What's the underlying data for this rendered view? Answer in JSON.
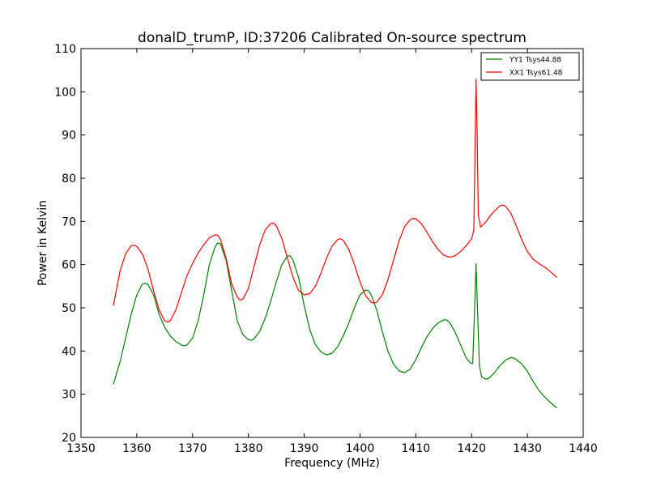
{
  "chart_data": {
    "type": "line",
    "title": "donalD_trumP, ID:37206 Calibrated On-source spectrum",
    "xlabel": "Frequency (MHz)",
    "ylabel": "Power in Kelvin",
    "xlim": [
      1350,
      1440
    ],
    "ylim": [
      20,
      110
    ],
    "xticks": [
      1350,
      1360,
      1370,
      1380,
      1390,
      1400,
      1410,
      1420,
      1430,
      1440
    ],
    "yticks": [
      20,
      30,
      40,
      50,
      60,
      70,
      80,
      90,
      100,
      110
    ],
    "grid": false,
    "legend_position": "top-right",
    "series": [
      {
        "name": "YY1 Tsys44.88",
        "color": "#008000",
        "points": [
          [
            1355.8,
            32.3
          ],
          [
            1357.0,
            37.5
          ],
          [
            1358.0,
            43.0
          ],
          [
            1359.0,
            48.5
          ],
          [
            1360.0,
            53.0
          ],
          [
            1361.0,
            55.5
          ],
          [
            1361.5,
            55.7
          ],
          [
            1362.0,
            55.4
          ],
          [
            1363.0,
            53.0
          ],
          [
            1364.0,
            48.5
          ],
          [
            1365.0,
            45.5
          ],
          [
            1366.0,
            43.5
          ],
          [
            1367.0,
            42.2
          ],
          [
            1368.0,
            41.4
          ],
          [
            1368.5,
            41.2
          ],
          [
            1369.0,
            41.4
          ],
          [
            1370.0,
            43.0
          ],
          [
            1371.0,
            47.0
          ],
          [
            1372.0,
            53.0
          ],
          [
            1373.0,
            60.0
          ],
          [
            1374.0,
            64.0
          ],
          [
            1374.5,
            65.0
          ],
          [
            1375.0,
            64.8
          ],
          [
            1376.0,
            61.0
          ],
          [
            1377.0,
            54.0
          ],
          [
            1378.0,
            47.0
          ],
          [
            1379.0,
            43.8
          ],
          [
            1380.0,
            42.6
          ],
          [
            1380.5,
            42.5
          ],
          [
            1381.0,
            42.8
          ],
          [
            1382.0,
            44.5
          ],
          [
            1383.0,
            47.5
          ],
          [
            1384.0,
            51.5
          ],
          [
            1385.0,
            56.0
          ],
          [
            1386.0,
            60.0
          ],
          [
            1387.0,
            62.0
          ],
          [
            1387.5,
            62.0
          ],
          [
            1388.0,
            61.0
          ],
          [
            1389.0,
            57.0
          ],
          [
            1390.0,
            50.5
          ],
          [
            1391.0,
            45.0
          ],
          [
            1392.0,
            41.5
          ],
          [
            1393.0,
            39.8
          ],
          [
            1394.0,
            39.1
          ],
          [
            1395.0,
            39.5
          ],
          [
            1396.0,
            41.0
          ],
          [
            1397.0,
            43.5
          ],
          [
            1398.0,
            46.5
          ],
          [
            1399.0,
            50.0
          ],
          [
            1400.0,
            53.0
          ],
          [
            1401.0,
            54.1
          ],
          [
            1401.5,
            54.0
          ],
          [
            1402.0,
            53.0
          ],
          [
            1403.0,
            49.5
          ],
          [
            1404.0,
            44.5
          ],
          [
            1405.0,
            40.0
          ],
          [
            1406.0,
            37.0
          ],
          [
            1407.0,
            35.4
          ],
          [
            1408.0,
            35.0
          ],
          [
            1409.0,
            35.8
          ],
          [
            1410.0,
            38.0
          ],
          [
            1411.0,
            40.8
          ],
          [
            1412.0,
            43.3
          ],
          [
            1413.0,
            45.2
          ],
          [
            1414.0,
            46.5
          ],
          [
            1415.0,
            47.2
          ],
          [
            1415.5,
            47.2
          ],
          [
            1416.0,
            46.7
          ],
          [
            1417.0,
            44.5
          ],
          [
            1418.0,
            41.5
          ],
          [
            1419.0,
            38.5
          ],
          [
            1419.8,
            37.2
          ],
          [
            1420.2,
            37.1
          ],
          [
            1420.6,
            52.0
          ],
          [
            1420.8,
            60.2
          ],
          [
            1421.1,
            48.0
          ],
          [
            1421.4,
            36.5
          ],
          [
            1421.8,
            34.0
          ],
          [
            1422.5,
            33.5
          ],
          [
            1423.0,
            33.6
          ],
          [
            1424.0,
            34.8
          ],
          [
            1425.0,
            36.5
          ],
          [
            1426.0,
            37.8
          ],
          [
            1427.0,
            38.5
          ],
          [
            1427.5,
            38.4
          ],
          [
            1428.0,
            38.0
          ],
          [
            1429.0,
            37.0
          ],
          [
            1430.0,
            35.3
          ],
          [
            1431.0,
            33.0
          ],
          [
            1432.0,
            31.0
          ],
          [
            1433.0,
            29.5
          ],
          [
            1434.0,
            28.2
          ],
          [
            1435.3,
            26.8
          ]
        ]
      },
      {
        "name": "XX1 Tsys61.48",
        "color": "#ff0000",
        "points": [
          [
            1355.8,
            50.5
          ],
          [
            1357.0,
            58.5
          ],
          [
            1358.0,
            62.5
          ],
          [
            1359.0,
            64.4
          ],
          [
            1359.5,
            64.5
          ],
          [
            1360.0,
            64.2
          ],
          [
            1361.0,
            62.5
          ],
          [
            1362.0,
            59.0
          ],
          [
            1363.0,
            54.0
          ],
          [
            1364.0,
            49.5
          ],
          [
            1365.0,
            47.0
          ],
          [
            1365.5,
            46.7
          ],
          [
            1366.0,
            47.0
          ],
          [
            1367.0,
            49.5
          ],
          [
            1368.0,
            53.5
          ],
          [
            1369.0,
            57.5
          ],
          [
            1370.0,
            60.3
          ],
          [
            1371.0,
            62.7
          ],
          [
            1372.0,
            64.6
          ],
          [
            1373.0,
            66.2
          ],
          [
            1374.0,
            66.9
          ],
          [
            1374.5,
            66.8
          ],
          [
            1375.0,
            65.8
          ],
          [
            1376.0,
            61.5
          ],
          [
            1377.0,
            55.5
          ],
          [
            1378.0,
            52.5
          ],
          [
            1378.5,
            51.8
          ],
          [
            1379.0,
            52.0
          ],
          [
            1380.0,
            54.5
          ],
          [
            1381.0,
            59.5
          ],
          [
            1382.0,
            64.5
          ],
          [
            1383.0,
            68.0
          ],
          [
            1384.0,
            69.5
          ],
          [
            1384.5,
            69.6
          ],
          [
            1385.0,
            69.0
          ],
          [
            1386.0,
            66.0
          ],
          [
            1387.0,
            61.5
          ],
          [
            1388.0,
            57.0
          ],
          [
            1389.0,
            54.0
          ],
          [
            1390.0,
            53.0
          ],
          [
            1391.0,
            53.3
          ],
          [
            1392.0,
            55.0
          ],
          [
            1393.0,
            58.0
          ],
          [
            1394.0,
            61.5
          ],
          [
            1395.0,
            64.3
          ],
          [
            1396.0,
            65.8
          ],
          [
            1396.5,
            66.0
          ],
          [
            1397.0,
            65.6
          ],
          [
            1398.0,
            63.5
          ],
          [
            1399.0,
            60.0
          ],
          [
            1400.0,
            56.0
          ],
          [
            1401.0,
            52.8
          ],
          [
            1402.0,
            51.3
          ],
          [
            1402.5,
            51.1
          ],
          [
            1403.0,
            51.3
          ],
          [
            1404.0,
            53.0
          ],
          [
            1405.0,
            56.5
          ],
          [
            1406.0,
            61.0
          ],
          [
            1407.0,
            65.5
          ],
          [
            1408.0,
            68.8
          ],
          [
            1409.0,
            70.4
          ],
          [
            1409.5,
            70.7
          ],
          [
            1410.0,
            70.6
          ],
          [
            1411.0,
            69.5
          ],
          [
            1412.0,
            67.5
          ],
          [
            1413.0,
            65.3
          ],
          [
            1414.0,
            63.5
          ],
          [
            1415.0,
            62.2
          ],
          [
            1416.0,
            61.7
          ],
          [
            1417.0,
            62.0
          ],
          [
            1418.0,
            63.0
          ],
          [
            1419.0,
            64.3
          ],
          [
            1420.0,
            66.0
          ],
          [
            1420.4,
            68.0
          ],
          [
            1420.6,
            85.0
          ],
          [
            1420.8,
            102.9
          ],
          [
            1421.0,
            90.0
          ],
          [
            1421.2,
            71.5
          ],
          [
            1421.6,
            68.7
          ],
          [
            1422.5,
            69.8
          ],
          [
            1423.0,
            70.7
          ],
          [
            1424.0,
            72.3
          ],
          [
            1425.0,
            73.5
          ],
          [
            1425.5,
            73.8
          ],
          [
            1426.0,
            73.6
          ],
          [
            1427.0,
            72.0
          ],
          [
            1428.0,
            69.0
          ],
          [
            1429.0,
            65.7
          ],
          [
            1430.0,
            63.0
          ],
          [
            1431.0,
            61.3
          ],
          [
            1432.0,
            60.3
          ],
          [
            1433.0,
            59.5
          ],
          [
            1434.0,
            58.5
          ],
          [
            1435.3,
            57.0
          ]
        ]
      }
    ]
  }
}
